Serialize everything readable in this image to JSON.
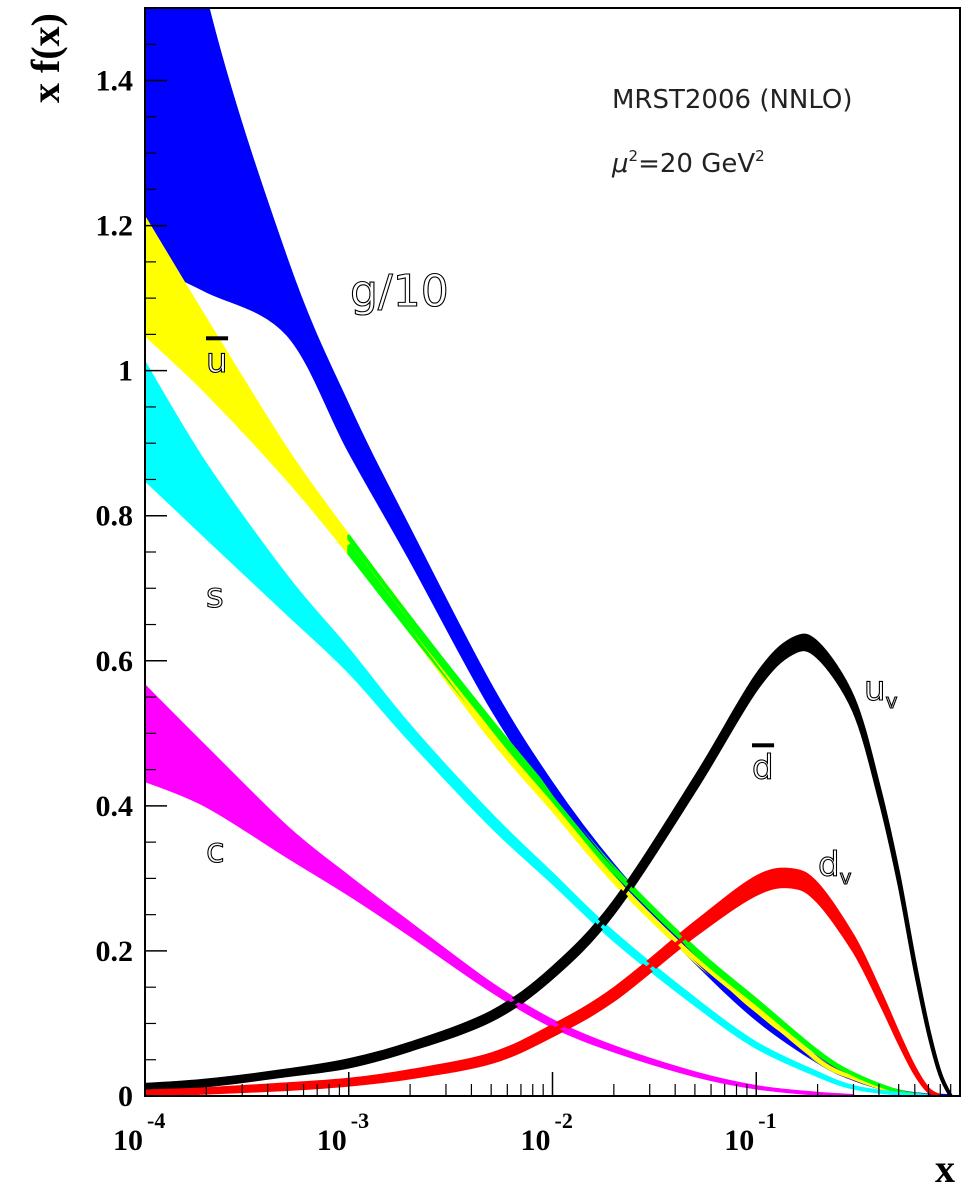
{
  "chart_data": {
    "type": "line",
    "title": "",
    "annotation_line1": "MRST2006 (NNLO)",
    "annotation_mu": "μ",
    "annotation_sup1": "2",
    "annotation_eq": "=20 GeV",
    "annotation_sup2": "2",
    "xlabel": "x",
    "ylabel": "x f(x)",
    "xscale": "log",
    "xlim": [
      0.0001,
      1
    ],
    "ylim": [
      0,
      1.5
    ],
    "x_ticks": [
      {
        "base": "10",
        "exp": "-4",
        "value": 0.0001
      },
      {
        "base": "10",
        "exp": "-3",
        "value": 0.001
      },
      {
        "base": "10",
        "exp": "-2",
        "value": 0.01
      },
      {
        "base": "10",
        "exp": "-1",
        "value": 0.1
      }
    ],
    "y_ticks": [
      {
        "label": "0",
        "value": 0
      },
      {
        "label": "0.2",
        "value": 0.2
      },
      {
        "label": "0.4",
        "value": 0.4
      },
      {
        "label": "0.6",
        "value": 0.6
      },
      {
        "label": "0.8",
        "value": 0.8
      },
      {
        "label": "1",
        "value": 1.0
      },
      {
        "label": "1.2",
        "value": 1.2
      },
      {
        "label": "1.4",
        "value": 1.4
      }
    ],
    "series": [
      {
        "name": "g/10",
        "label": "g/10",
        "label_bar": false,
        "color": "#0000ff",
        "x": [
          0.0001,
          0.0002,
          0.0005,
          0.001,
          0.002,
          0.005,
          0.01,
          0.02,
          0.05,
          0.1,
          0.2,
          0.3,
          0.5,
          0.7,
          0.9
        ],
        "y": [
          1.55,
          1.31,
          1.1,
          0.92,
          0.76,
          0.55,
          0.42,
          0.31,
          0.19,
          0.11,
          0.05,
          0.025,
          0.006,
          0.001,
          0.0
        ],
        "err": [
          0.4,
          0.2,
          0.05,
          0.03,
          0.02,
          0.015,
          0.01,
          0.008,
          0.005,
          0.004,
          0.003,
          0.002,
          0.001,
          0.0,
          0.0
        ]
      },
      {
        "name": "ubar",
        "label": "u",
        "label_bar": true,
        "color": "#ffff00",
        "x": [
          0.0001,
          0.0002,
          0.0005,
          0.001,
          0.002,
          0.005,
          0.01,
          0.02,
          0.05,
          0.1,
          0.2,
          0.3,
          0.5,
          0.7
        ],
        "y": [
          1.13,
          1.02,
          0.87,
          0.76,
          0.65,
          0.5,
          0.4,
          0.3,
          0.19,
          0.12,
          0.05,
          0.025,
          0.005,
          0.0
        ],
        "err": [
          0.08,
          0.05,
          0.02,
          0.012,
          0.01,
          0.008,
          0.006,
          0.005,
          0.004,
          0.003,
          0.002,
          0.001,
          0.0,
          0.0
        ]
      },
      {
        "name": "dbar",
        "label": "d",
        "label_bar": true,
        "color": "#00ff00",
        "x": [
          0.001,
          0.002,
          0.005,
          0.01,
          0.02,
          0.05,
          0.1,
          0.2,
          0.3,
          0.5,
          0.7
        ],
        "y": [
          0.76,
          0.65,
          0.51,
          0.41,
          0.31,
          0.2,
          0.13,
          0.06,
          0.03,
          0.006,
          0.0
        ],
        "err": [
          0.012,
          0.01,
          0.008,
          0.006,
          0.005,
          0.004,
          0.003,
          0.002,
          0.001,
          0.0,
          0.0
        ]
      },
      {
        "name": "s",
        "label": "s",
        "label_bar": false,
        "color": "#00ffff",
        "x": [
          0.0001,
          0.0002,
          0.0005,
          0.001,
          0.002,
          0.005,
          0.01,
          0.02,
          0.05,
          0.1,
          0.2,
          0.3,
          0.5,
          0.7
        ],
        "y": [
          0.93,
          0.82,
          0.69,
          0.6,
          0.5,
          0.38,
          0.3,
          0.22,
          0.13,
          0.07,
          0.03,
          0.012,
          0.003,
          0.0
        ],
        "err": [
          0.08,
          0.05,
          0.025,
          0.015,
          0.01,
          0.008,
          0.006,
          0.005,
          0.004,
          0.003,
          0.002,
          0.001,
          0.0,
          0.0
        ]
      },
      {
        "name": "c",
        "label": "c",
        "label_bar": false,
        "color": "#ff00ff",
        "x": [
          0.0001,
          0.0002,
          0.0005,
          0.001,
          0.002,
          0.005,
          0.01,
          0.02,
          0.05,
          0.1,
          0.2,
          0.3
        ],
        "y": [
          0.5,
          0.44,
          0.35,
          0.29,
          0.23,
          0.15,
          0.1,
          0.065,
          0.03,
          0.012,
          0.003,
          0.0
        ],
        "err": [
          0.065,
          0.04,
          0.02,
          0.012,
          0.008,
          0.005,
          0.004,
          0.003,
          0.002,
          0.001,
          0.0,
          0.0
        ]
      },
      {
        "name": "u_v",
        "label": "u",
        "label_sub": "v",
        "label_bar": false,
        "color": "#000000",
        "x": [
          0.0001,
          0.0002,
          0.0005,
          0.001,
          0.002,
          0.005,
          0.01,
          0.02,
          0.05,
          0.1,
          0.15,
          0.2,
          0.3,
          0.4,
          0.5,
          0.6,
          0.7,
          0.8,
          0.9
        ],
        "y": [
          0.012,
          0.018,
          0.032,
          0.045,
          0.068,
          0.11,
          0.17,
          0.26,
          0.43,
          0.57,
          0.62,
          0.615,
          0.54,
          0.42,
          0.3,
          0.18,
          0.09,
          0.03,
          0.0
        ],
        "err": [
          0.004,
          0.004,
          0.004,
          0.005,
          0.005,
          0.006,
          0.007,
          0.008,
          0.009,
          0.01,
          0.01,
          0.01,
          0.009,
          0.008,
          0.007,
          0.006,
          0.004,
          0.002,
          0.0
        ]
      },
      {
        "name": "d_v",
        "label": "d",
        "label_sub": "v",
        "label_bar": false,
        "color": "#ff0000",
        "x": [
          0.0001,
          0.0002,
          0.0005,
          0.001,
          0.002,
          0.005,
          0.01,
          0.02,
          0.05,
          0.1,
          0.15,
          0.2,
          0.3,
          0.4,
          0.5,
          0.6,
          0.7,
          0.8
        ],
        "y": [
          0.004,
          0.007,
          0.013,
          0.019,
          0.03,
          0.052,
          0.09,
          0.14,
          0.23,
          0.29,
          0.3,
          0.28,
          0.21,
          0.14,
          0.08,
          0.035,
          0.008,
          0.0
        ],
        "err": [
          0.003,
          0.003,
          0.004,
          0.004,
          0.005,
          0.006,
          0.007,
          0.008,
          0.009,
          0.012,
          0.012,
          0.012,
          0.01,
          0.008,
          0.006,
          0.004,
          0.002,
          0.0
        ]
      }
    ]
  }
}
